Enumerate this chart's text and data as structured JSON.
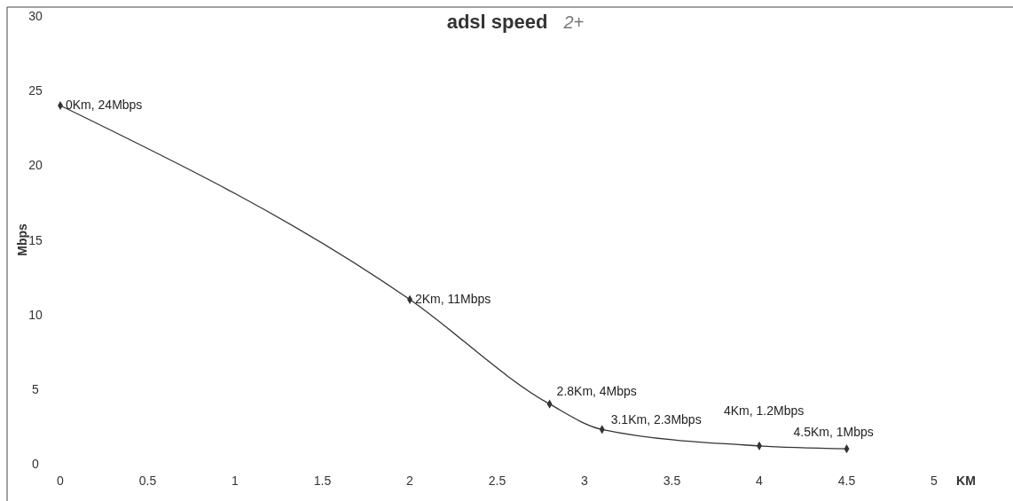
{
  "chart_data": {
    "type": "line",
    "title": "adsl speed",
    "annotations": [
      "2+"
    ],
    "xlabel": "KM",
    "ylabel": "Mbps",
    "x": [
      0,
      2,
      2.8,
      3.1,
      4,
      4.5
    ],
    "series": [
      {
        "color": "#333333",
        "values": [
          24,
          11,
          4,
          2.3,
          1.2,
          1
        ],
        "value_labels": [
          "0Km, 24Mbps",
          "2Km, 11Mbps",
          "2.8Km, 4Mbps",
          "3.1Km, 2.3Mbps",
          "4Km, 1.2Mbps",
          "4.5Km, 1Mbps"
        ]
      }
    ],
    "xlim": [
      0,
      5
    ],
    "xticks": [
      0,
      0.5,
      1,
      1.5,
      2,
      2.5,
      3,
      3.5,
      4,
      4.5,
      5
    ],
    "ylim": [
      0,
      30
    ],
    "yticks": [
      0,
      5,
      10,
      15,
      20,
      25,
      30
    ],
    "grid": false,
    "marker": "diamond",
    "line_style": "solid"
  }
}
